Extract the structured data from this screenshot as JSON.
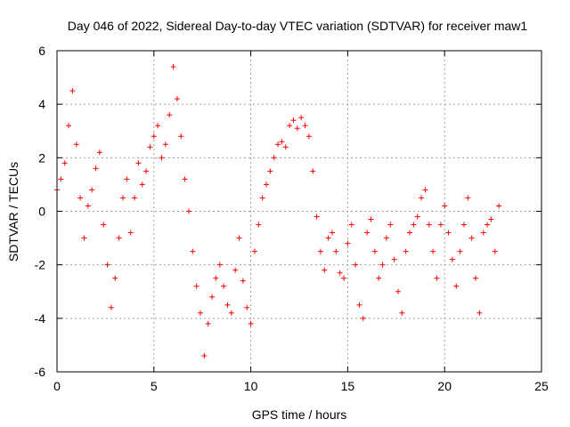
{
  "chart_data": {
    "type": "scatter",
    "title": "Day 046 of 2022, Sidereal Day-to-day VTEC variation (SDTVAR) for receiver maw1",
    "xlabel": "GPS time / hours",
    "ylabel": "SDTVAR / TECUs",
    "xlim": [
      0,
      25
    ],
    "ylim": [
      -6,
      6
    ],
    "xticks": [
      0,
      5,
      10,
      15,
      20,
      25
    ],
    "yticks": [
      -6,
      -4,
      -2,
      0,
      2,
      4,
      6
    ],
    "xtick_labels": [
      "0",
      "5",
      "10",
      "15",
      "20",
      "25"
    ],
    "ytick_labels": [
      "-6",
      "-4",
      "-2",
      "0",
      "2",
      "4",
      "6"
    ],
    "grid": true,
    "marker": "+",
    "color": "#ff0000",
    "series": [
      {
        "name": "SDTVAR",
        "x": [
          0.0,
          0.2,
          0.4,
          0.6,
          0.8,
          1.0,
          1.2,
          1.4,
          1.6,
          1.8,
          2.0,
          2.2,
          2.4,
          2.6,
          2.8,
          3.0,
          3.2,
          3.4,
          3.6,
          3.8,
          4.0,
          4.2,
          4.4,
          4.6,
          4.8,
          5.0,
          5.2,
          5.4,
          5.6,
          5.8,
          6.0,
          6.2,
          6.4,
          6.6,
          6.8,
          7.0,
          7.2,
          7.4,
          7.6,
          7.8,
          8.0,
          8.2,
          8.4,
          8.6,
          8.8,
          9.0,
          9.2,
          9.4,
          9.6,
          9.8,
          10.0,
          10.2,
          10.4,
          10.6,
          10.8,
          11.0,
          11.2,
          11.4,
          11.6,
          11.8,
          12.0,
          12.2,
          12.4,
          12.6,
          12.8,
          13.0,
          13.2,
          13.4,
          13.6,
          13.8,
          14.0,
          14.2,
          14.4,
          14.6,
          14.8,
          15.0,
          15.2,
          15.4,
          15.6,
          15.8,
          16.0,
          16.2,
          16.4,
          16.6,
          16.8,
          17.0,
          17.2,
          17.4,
          17.6,
          17.8,
          18.0,
          18.2,
          18.4,
          18.6,
          18.8,
          19.0,
          19.2,
          19.4,
          19.6,
          19.8,
          20.0,
          20.2,
          20.4,
          20.6,
          20.8,
          21.0,
          21.2,
          21.4,
          21.6,
          21.8,
          22.0,
          22.2,
          22.4,
          22.6,
          22.8
        ],
        "y": [
          0.8,
          1.2,
          1.8,
          3.2,
          4.5,
          2.5,
          0.5,
          -1.0,
          0.2,
          0.8,
          1.6,
          2.2,
          -0.5,
          -2.0,
          -3.6,
          -2.5,
          -1.0,
          0.5,
          1.2,
          -0.8,
          0.5,
          1.8,
          1.0,
          1.5,
          2.4,
          2.8,
          3.2,
          2.0,
          2.5,
          3.6,
          5.4,
          4.2,
          2.8,
          1.2,
          0.0,
          -1.5,
          -2.8,
          -3.8,
          -5.4,
          -4.2,
          -3.2,
          -2.5,
          -2.0,
          -2.8,
          -3.5,
          -3.8,
          -2.2,
          -1.0,
          -2.6,
          -3.6,
          -4.2,
          -1.5,
          -0.5,
          0.5,
          1.0,
          1.5,
          2.0,
          2.5,
          2.6,
          2.4,
          3.2,
          3.4,
          3.1,
          3.5,
          3.2,
          2.8,
          1.5,
          -0.2,
          -1.5,
          -2.2,
          -1.0,
          -0.8,
          -1.5,
          -2.3,
          -2.5,
          -1.2,
          -0.5,
          -2.0,
          -3.5,
          -4.0,
          -0.8,
          -0.3,
          -1.5,
          -2.5,
          -2.0,
          -1.0,
          -0.5,
          -1.8,
          -3.0,
          -3.8,
          -1.5,
          -0.8,
          -0.5,
          -0.2,
          0.5,
          0.8,
          -0.5,
          -1.5,
          -2.5,
          -0.5,
          0.2,
          -0.8,
          -1.8,
          -2.8,
          -1.5,
          -0.5,
          0.5,
          -1.0,
          -2.5,
          -3.8,
          -0.8,
          -0.5,
          -0.3,
          -1.5,
          0.2
        ]
      }
    ]
  }
}
